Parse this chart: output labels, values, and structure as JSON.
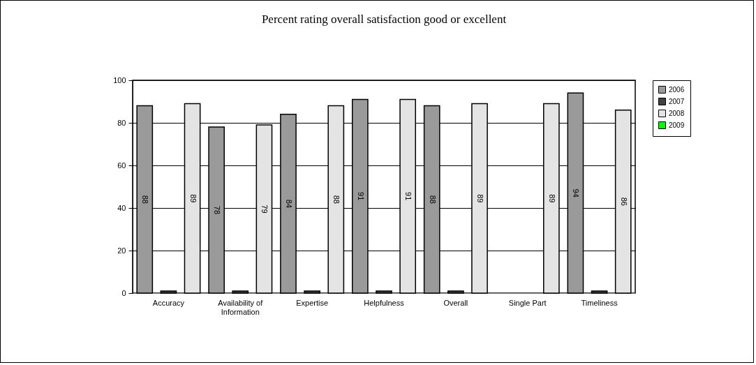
{
  "chart_data": {
    "type": "bar",
    "title": "Percent rating overall satisfaction good or excellent",
    "categories": [
      "Accuracy",
      "Availability of Information",
      "Expertise",
      "Helpfulness",
      "Overall",
      "Single Part",
      "Timeliness"
    ],
    "series": [
      {
        "name": "2006",
        "color": "#9a9a9a",
        "values": [
          88,
          78,
          84,
          91,
          88,
          null,
          94
        ],
        "value_labels": [
          "88",
          "78",
          "84",
          "91",
          "88",
          null,
          "94"
        ]
      },
      {
        "name": "2007",
        "color": "#404040",
        "values": [
          1,
          1,
          1,
          1,
          1,
          null,
          1
        ],
        "value_labels": [
          null,
          null,
          null,
          null,
          null,
          null,
          null
        ]
      },
      {
        "name": "2008",
        "color": "#e4e4e4",
        "values": [
          89,
          79,
          88,
          91,
          89,
          89,
          86
        ],
        "value_labels": [
          "89",
          "79",
          "88",
          "91",
          "89",
          "89",
          "86"
        ]
      },
      {
        "name": "2009",
        "type": "line",
        "marker": "square",
        "color": "#00ff00",
        "values": [
          null,
          null,
          null,
          null,
          null,
          null,
          null
        ]
      }
    ],
    "ylim": [
      0,
      100
    ],
    "yticks": [
      0,
      20,
      40,
      60,
      80,
      100
    ],
    "grid": "y",
    "legend": "right"
  }
}
